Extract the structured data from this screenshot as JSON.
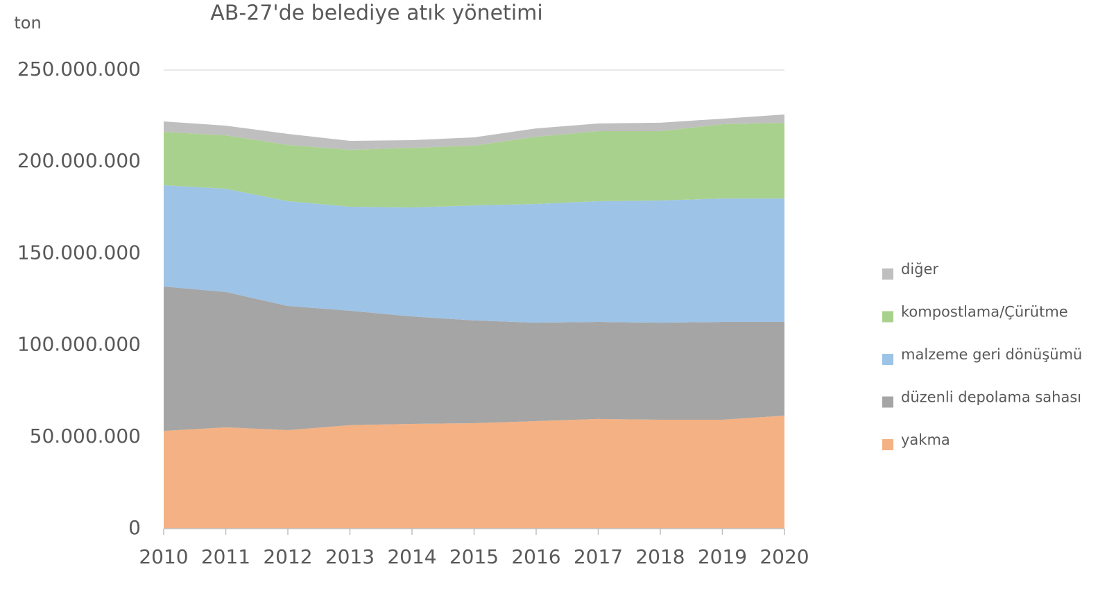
{
  "chart_data": {
    "type": "stacked-area",
    "title": "AB-27'de belediye atık yönetimi",
    "y_label": "ton",
    "categories": [
      "2010",
      "2011",
      "2012",
      "2013",
      "2014",
      "2015",
      "2016",
      "2017",
      "2018",
      "2019",
      "2020"
    ],
    "series": [
      {
        "name": "yakma",
        "color": "#f4b183",
        "values": [
          53300000,
          55200000,
          53700000,
          56400000,
          57100000,
          57500000,
          58600000,
          59800000,
          59400000,
          59400000,
          61600000
        ]
      },
      {
        "name": "düzenli depolama sahası",
        "color": "#a5a5a5",
        "values": [
          78700000,
          73800000,
          67700000,
          62400000,
          58600000,
          56000000,
          53700000,
          52900000,
          52900000,
          53300000,
          51100000
        ]
      },
      {
        "name": "malzeme geri dönüşümü",
        "color": "#9dc3e6",
        "values": [
          55200000,
          56300000,
          57100000,
          56700000,
          59400000,
          62700000,
          64700000,
          65800000,
          66600000,
          67300000,
          67300000
        ]
      },
      {
        "name": "kompostlama/Çürütme",
        "color": "#a9d18e",
        "values": [
          29100000,
          29100000,
          30700000,
          31000000,
          32500000,
          32600000,
          36700000,
          38200000,
          37800000,
          40500000,
          41300000
        ]
      },
      {
        "name": "diğer",
        "color": "#bfbfbf",
        "values": [
          5700000,
          5300000,
          6000000,
          4900000,
          4200000,
          4500000,
          4500000,
          4200000,
          4600000,
          3000000,
          4500000
        ]
      }
    ],
    "ylim": [
      0,
      250000000
    ],
    "yticks": [
      0,
      {
        "value": 50000000,
        "label": "50.000.000"
      },
      {
        "value": 100000000,
        "label": "100.000.000"
      },
      {
        "value": 150000000,
        "label": "150.000.000"
      },
      {
        "value": 200000000,
        "label": "200.000.000"
      },
      {
        "value": 250000000,
        "label": "250.000.000"
      }
    ],
    "grid": true,
    "legend": "right"
  }
}
